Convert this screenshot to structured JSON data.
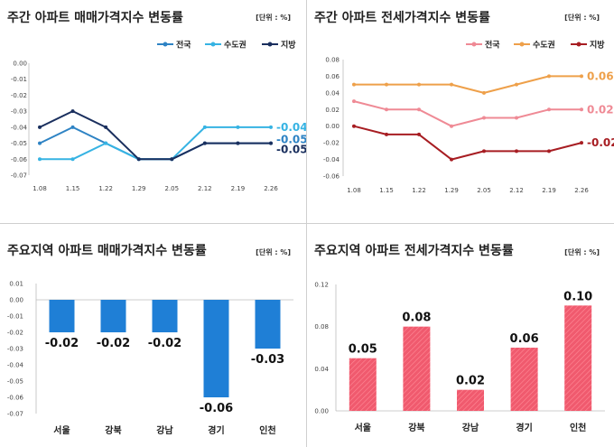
{
  "chart_data": [
    {
      "type": "line",
      "title": "주간 아파트 매매가격지수 변동률",
      "unit": "[단위 : %]",
      "categories": [
        "1.08",
        "1.15",
        "1.22",
        "1.29",
        "2.05",
        "2.12",
        "2.19",
        "2.26"
      ],
      "ylim": [
        -0.07,
        0.0
      ],
      "yticks": [
        "0.00",
        "-0.01",
        "-0.02",
        "-0.03",
        "-0.04",
        "-0.05",
        "-0.06",
        "-0.07"
      ],
      "series": [
        {
          "name": "전국",
          "color": "#2e83c4",
          "values": [
            -0.05,
            -0.04,
            -0.05,
            -0.06,
            -0.06,
            -0.05,
            -0.05,
            -0.05
          ],
          "end_label": "-0.05"
        },
        {
          "name": "수도권",
          "color": "#36b3e3",
          "values": [
            -0.06,
            -0.06,
            -0.05,
            -0.06,
            -0.06,
            -0.04,
            -0.04,
            -0.04
          ],
          "end_label": "-0.04"
        },
        {
          "name": "지방",
          "color": "#1a2f5e",
          "values": [
            -0.04,
            -0.03,
            -0.04,
            -0.06,
            -0.06,
            -0.05,
            -0.05,
            -0.05
          ],
          "end_label": "-0.05"
        }
      ]
    },
    {
      "type": "line",
      "title": "주간 아파트 전세가격지수 변동률",
      "unit": "[단위 : %]",
      "categories": [
        "1.08",
        "1.15",
        "1.22",
        "1.29",
        "2.05",
        "2.12",
        "2.19",
        "2.26"
      ],
      "ylim": [
        -0.06,
        0.08
      ],
      "yticks": [
        "0.08",
        "0.06",
        "0.04",
        "0.02",
        "0.00",
        "-0.02",
        "-0.04",
        "-0.06"
      ],
      "series": [
        {
          "name": "전국",
          "color": "#ef8a95",
          "values": [
            0.03,
            0.02,
            0.02,
            0.0,
            0.01,
            0.01,
            0.02,
            0.02
          ],
          "end_label": "0.02"
        },
        {
          "name": "수도권",
          "color": "#eea04a",
          "values": [
            0.05,
            0.05,
            0.05,
            0.05,
            0.04,
            0.05,
            0.06,
            0.06
          ],
          "end_label": "0.06"
        },
        {
          "name": "지방",
          "color": "#a71d22",
          "values": [
            0.0,
            -0.01,
            -0.01,
            -0.04,
            -0.03,
            -0.03,
            -0.03,
            -0.02
          ],
          "end_label": "-0.02"
        }
      ]
    },
    {
      "type": "bar",
      "title": "주요지역 아파트 매매가격지수 변동률",
      "unit": "[단위 : %]",
      "categories": [
        "서울",
        "강북",
        "강남",
        "경기",
        "인천"
      ],
      "values": [
        -0.02,
        -0.02,
        -0.02,
        -0.06,
        -0.03
      ],
      "labels": [
        "-0.02",
        "-0.02",
        "-0.02",
        "-0.06",
        "-0.03"
      ],
      "ylim": [
        -0.07,
        0.01
      ],
      "yticks": [
        "0.01",
        "0.00",
        "-0.01",
        "-0.02",
        "-0.03",
        "-0.04",
        "-0.05",
        "-0.06",
        "-0.07"
      ],
      "color": "#1f7fd6"
    },
    {
      "type": "bar",
      "title": "주요지역 아파트 전세가격지수 변동률",
      "unit": "[단위 : %]",
      "categories": [
        "서울",
        "강북",
        "강남",
        "경기",
        "인천"
      ],
      "values": [
        0.05,
        0.08,
        0.02,
        0.06,
        0.1
      ],
      "labels": [
        "0.05",
        "0.08",
        "0.02",
        "0.06",
        "0.10"
      ],
      "ylim": [
        0.0,
        0.12
      ],
      "yticks": [
        "0.12",
        "0.08",
        "0.04",
        "0.00"
      ],
      "color": "#f05a6e"
    }
  ]
}
